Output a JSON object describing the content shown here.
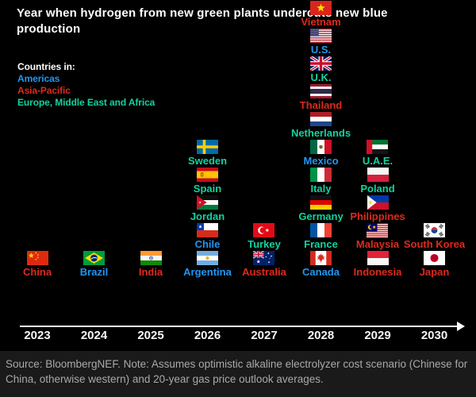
{
  "title": "Year when hydrogen from new green plants undercuts new blue production",
  "legend": {
    "heading": "Countries in:",
    "items": [
      {
        "label": "Americas",
        "color": "#2196f3"
      },
      {
        "label": "Asia-Pacific",
        "color": "#de2a1b"
      },
      {
        "label": "Europe, Middle East and Africa",
        "color": "#12d39e"
      }
    ]
  },
  "footer": {
    "text": "Source: BloombergNEF. Note: Assumes optimistic alkaline electrolyzer cost scenario (Chinese for China, otherwise western) and 20-year gas price outlook averages."
  },
  "chart_data": {
    "type": "table",
    "subtype": "flag-timeline",
    "title": "Year when hydrogen from new green plants undercuts new blue production",
    "x_categories": [
      "2023",
      "2024",
      "2025",
      "2026",
      "2027",
      "2028",
      "2029",
      "2030"
    ],
    "legend_position": "top-left",
    "grid": false,
    "axis_arrow": true,
    "region_colors": {
      "Americas": "#2196f3",
      "Asia-Pacific": "#de2a1b",
      "Europe, Middle East and Africa": "#12d39e"
    },
    "columns": [
      {
        "year": "2023",
        "countries": [
          {
            "name": "China",
            "region": "Asia-Pacific",
            "flag": "china"
          }
        ]
      },
      {
        "year": "2024",
        "countries": [
          {
            "name": "Brazil",
            "region": "Americas",
            "flag": "brazil"
          }
        ]
      },
      {
        "year": "2025",
        "countries": [
          {
            "name": "India",
            "region": "Asia-Pacific",
            "flag": "india"
          }
        ]
      },
      {
        "year": "2026",
        "countries": [
          {
            "name": "Sweden",
            "region": "Europe, Middle East and Africa",
            "flag": "sweden"
          },
          {
            "name": "Spain",
            "region": "Europe, Middle East and Africa",
            "flag": "spain"
          },
          {
            "name": "Jordan",
            "region": "Europe, Middle East and Africa",
            "flag": "jordan"
          },
          {
            "name": "Chile",
            "region": "Americas",
            "flag": "chile"
          },
          {
            "name": "Argentina",
            "region": "Americas",
            "flag": "argentina"
          }
        ]
      },
      {
        "year": "2027",
        "countries": [
          {
            "name": "Turkey",
            "region": "Europe, Middle East and Africa",
            "flag": "turkey"
          },
          {
            "name": "Australia",
            "region": "Asia-Pacific",
            "flag": "australia"
          }
        ]
      },
      {
        "year": "2028",
        "countries": [
          {
            "name": "Vietnam",
            "region": "Asia-Pacific",
            "flag": "vietnam"
          },
          {
            "name": "U.S.",
            "region": "Americas",
            "flag": "us"
          },
          {
            "name": "U.K.",
            "region": "Europe, Middle East and Africa",
            "flag": "uk"
          },
          {
            "name": "Thailand",
            "region": "Asia-Pacific",
            "flag": "thailand"
          },
          {
            "name": "Netherlands",
            "region": "Europe, Middle East and Africa",
            "flag": "netherlands"
          },
          {
            "name": "Mexico",
            "region": "Americas",
            "flag": "mexico"
          },
          {
            "name": "Italy",
            "region": "Europe, Middle East and Africa",
            "flag": "italy"
          },
          {
            "name": "Germany",
            "region": "Europe, Middle East and Africa",
            "flag": "germany"
          },
          {
            "name": "France",
            "region": "Europe, Middle East and Africa",
            "flag": "france"
          },
          {
            "name": "Canada",
            "region": "Americas",
            "flag": "canada"
          }
        ]
      },
      {
        "year": "2029",
        "countries": [
          {
            "name": "U.A.E.",
            "region": "Europe, Middle East and Africa",
            "flag": "uae"
          },
          {
            "name": "Poland",
            "region": "Europe, Middle East and Africa",
            "flag": "poland"
          },
          {
            "name": "Philippines",
            "region": "Asia-Pacific",
            "flag": "philippines"
          },
          {
            "name": "Malaysia",
            "region": "Asia-Pacific",
            "flag": "malaysia"
          },
          {
            "name": "Indonesia",
            "region": "Asia-Pacific",
            "flag": "indonesia"
          }
        ]
      },
      {
        "year": "2030",
        "countries": [
          {
            "name": "South Korea",
            "region": "Asia-Pacific",
            "flag": "south-korea"
          },
          {
            "name": "Japan",
            "region": "Asia-Pacific",
            "flag": "japan"
          }
        ]
      }
    ]
  }
}
